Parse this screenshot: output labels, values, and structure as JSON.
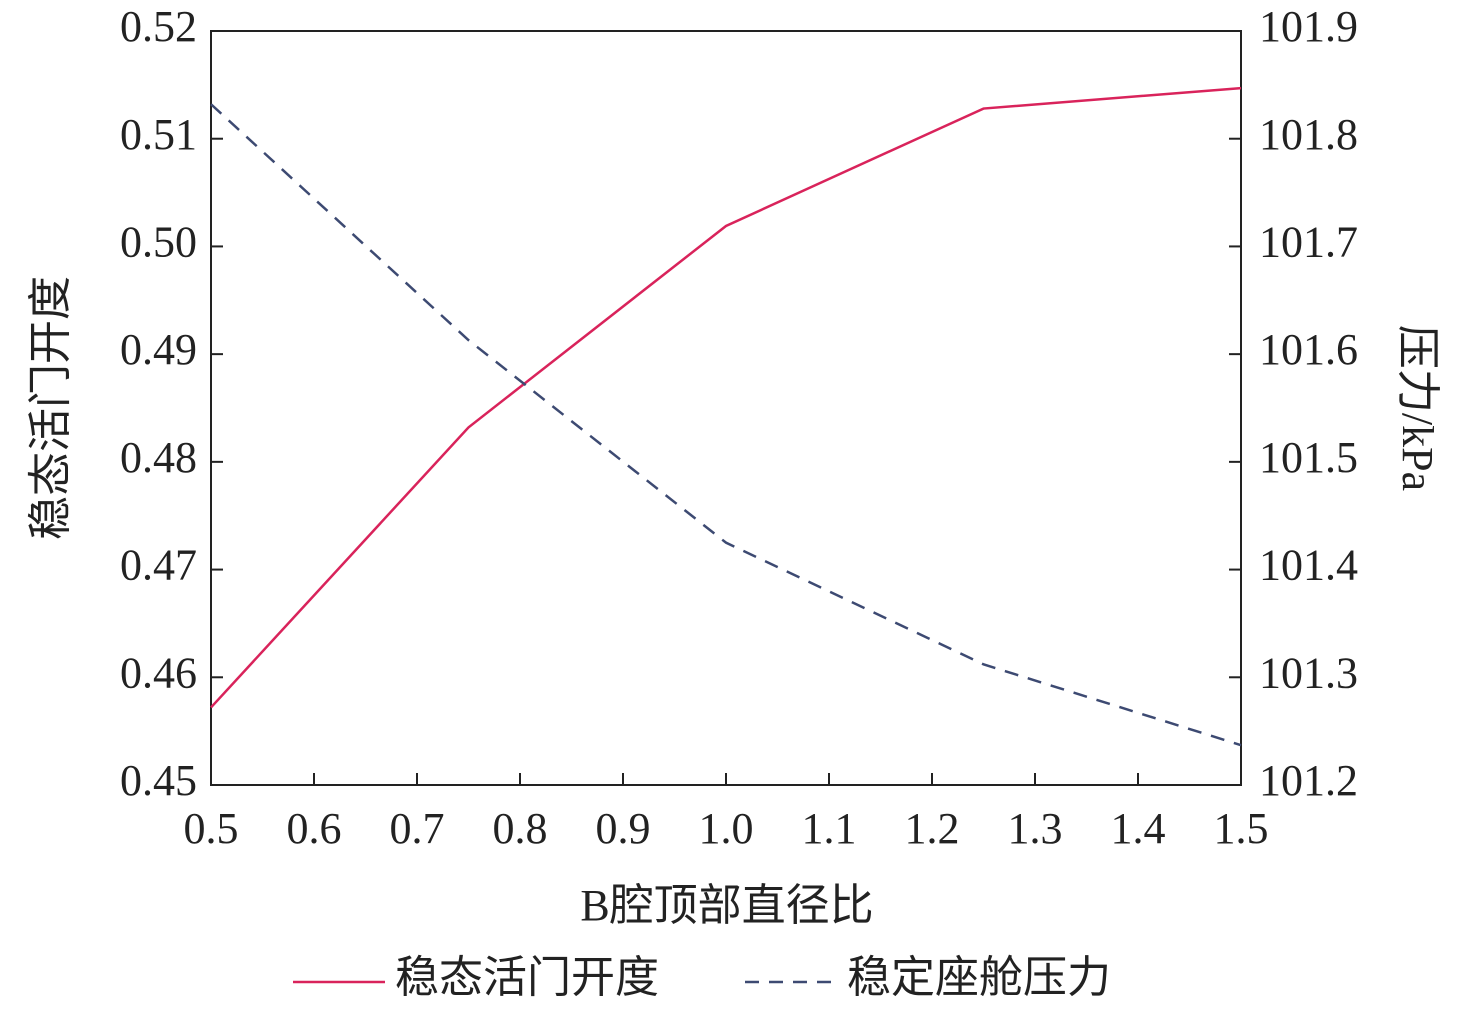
{
  "chart_data": {
    "type": "line",
    "xlabel": "B腔顶部直径比",
    "ylabel": "稳态活门开度",
    "y2label": "压力/kPa",
    "x": [
      0.5,
      0.75,
      1.0,
      1.25,
      1.5
    ],
    "series": [
      {
        "name": "稳态活门开度",
        "color": "#d9235b",
        "dash": false,
        "values": [
          0.4572,
          0.4832,
          0.5019,
          0.5128,
          0.5147
        ]
      },
      {
        "name": "稳定座舱压力",
        "color": "#3d4a72",
        "dash": true,
        "axis": "y2",
        "values": [
          101.832,
          101.613,
          101.425,
          101.312,
          101.237
        ]
      }
    ],
    "xlim": [
      0.5,
      1.5
    ],
    "xticks": [
      0.5,
      0.6,
      0.7,
      0.8,
      0.9,
      {
        "value": 1,
        "label": "1.0"
      },
      1.1,
      1.2,
      1.3,
      1.4,
      1.5
    ],
    "ylim": [
      0.45,
      0.52
    ],
    "yticks": [
      0.45,
      0.46,
      0.47,
      0.48,
      0.49,
      {
        "value": 0.5,
        "label": "0.50"
      },
      0.51,
      0.52
    ],
    "y2lim": [
      101.2,
      101.9
    ],
    "y2ticks": [
      101.2,
      101.3,
      101.4,
      101.5,
      101.6,
      101.7,
      101.8,
      101.9
    ],
    "legend": "bottom"
  }
}
